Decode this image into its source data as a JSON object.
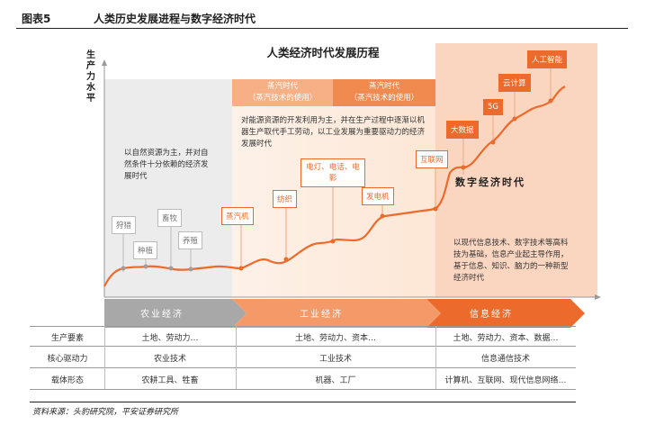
{
  "figure": {
    "number": "图表5",
    "title": "人类历史发展进程与数字经济时代"
  },
  "diagram": {
    "title": "人类经济时代发展历程",
    "y_axis_label": "生产力水平",
    "era_heads": [
      {
        "title": "蒸汽时代",
        "subtitle": "（蒸汽技术的使用）"
      },
      {
        "title": "蒸汽时代",
        "subtitle": "（蒸汽技术的使用）"
      }
    ],
    "descriptions": {
      "agriculture": "以自然资源为主，并对自然条件十分依赖的经济发展时代",
      "industry": "对能源资源的开发利用为主，并在生产过程中逐渐以机器生产取代手工劳动，以工业发展为重要驱动力的经济发展时代",
      "information": "以现代信息技术、数字技术等高科技为基础，信息产业起主导作用，基于信息、知识、脑力的一种新型经济时代"
    },
    "digital_era_label": "数字经济时代",
    "milestones": {
      "hunting": "狩猎",
      "planting": "种植",
      "herding": "畜牧",
      "breeding": "养殖",
      "steam_engine": "蒸汽机",
      "textile": "纺织",
      "electric": "电灯、电话、电影",
      "power_gen": "发电机",
      "internet": "互联网",
      "big_data": "大数据",
      "fiveg": "5G",
      "cloud": "云计算",
      "ai": "人工智能"
    },
    "stages": [
      "农业经济",
      "工业经济",
      "信息经济"
    ]
  },
  "table": {
    "rows": [
      {
        "label": "生产要素",
        "cells": [
          "土地、劳动力…",
          "土地、劳动力、资本…",
          "土地、劳动力、资本、数据…"
        ]
      },
      {
        "label": "核心驱动力",
        "cells": [
          "农业技术",
          "工业技术",
          "信息通信技术"
        ]
      },
      {
        "label": "载体形态",
        "cells": [
          "农耕工具、牲畜",
          "机器、工厂",
          "计算机、互联网、现代信息网络…"
        ]
      }
    ]
  },
  "source": "资料来源：头豹研究院，平安证券研究所",
  "colors": {
    "accent": "#ec6a2c",
    "agri_banner": "#a8a8a8",
    "info_zone": "#fad5c0"
  }
}
